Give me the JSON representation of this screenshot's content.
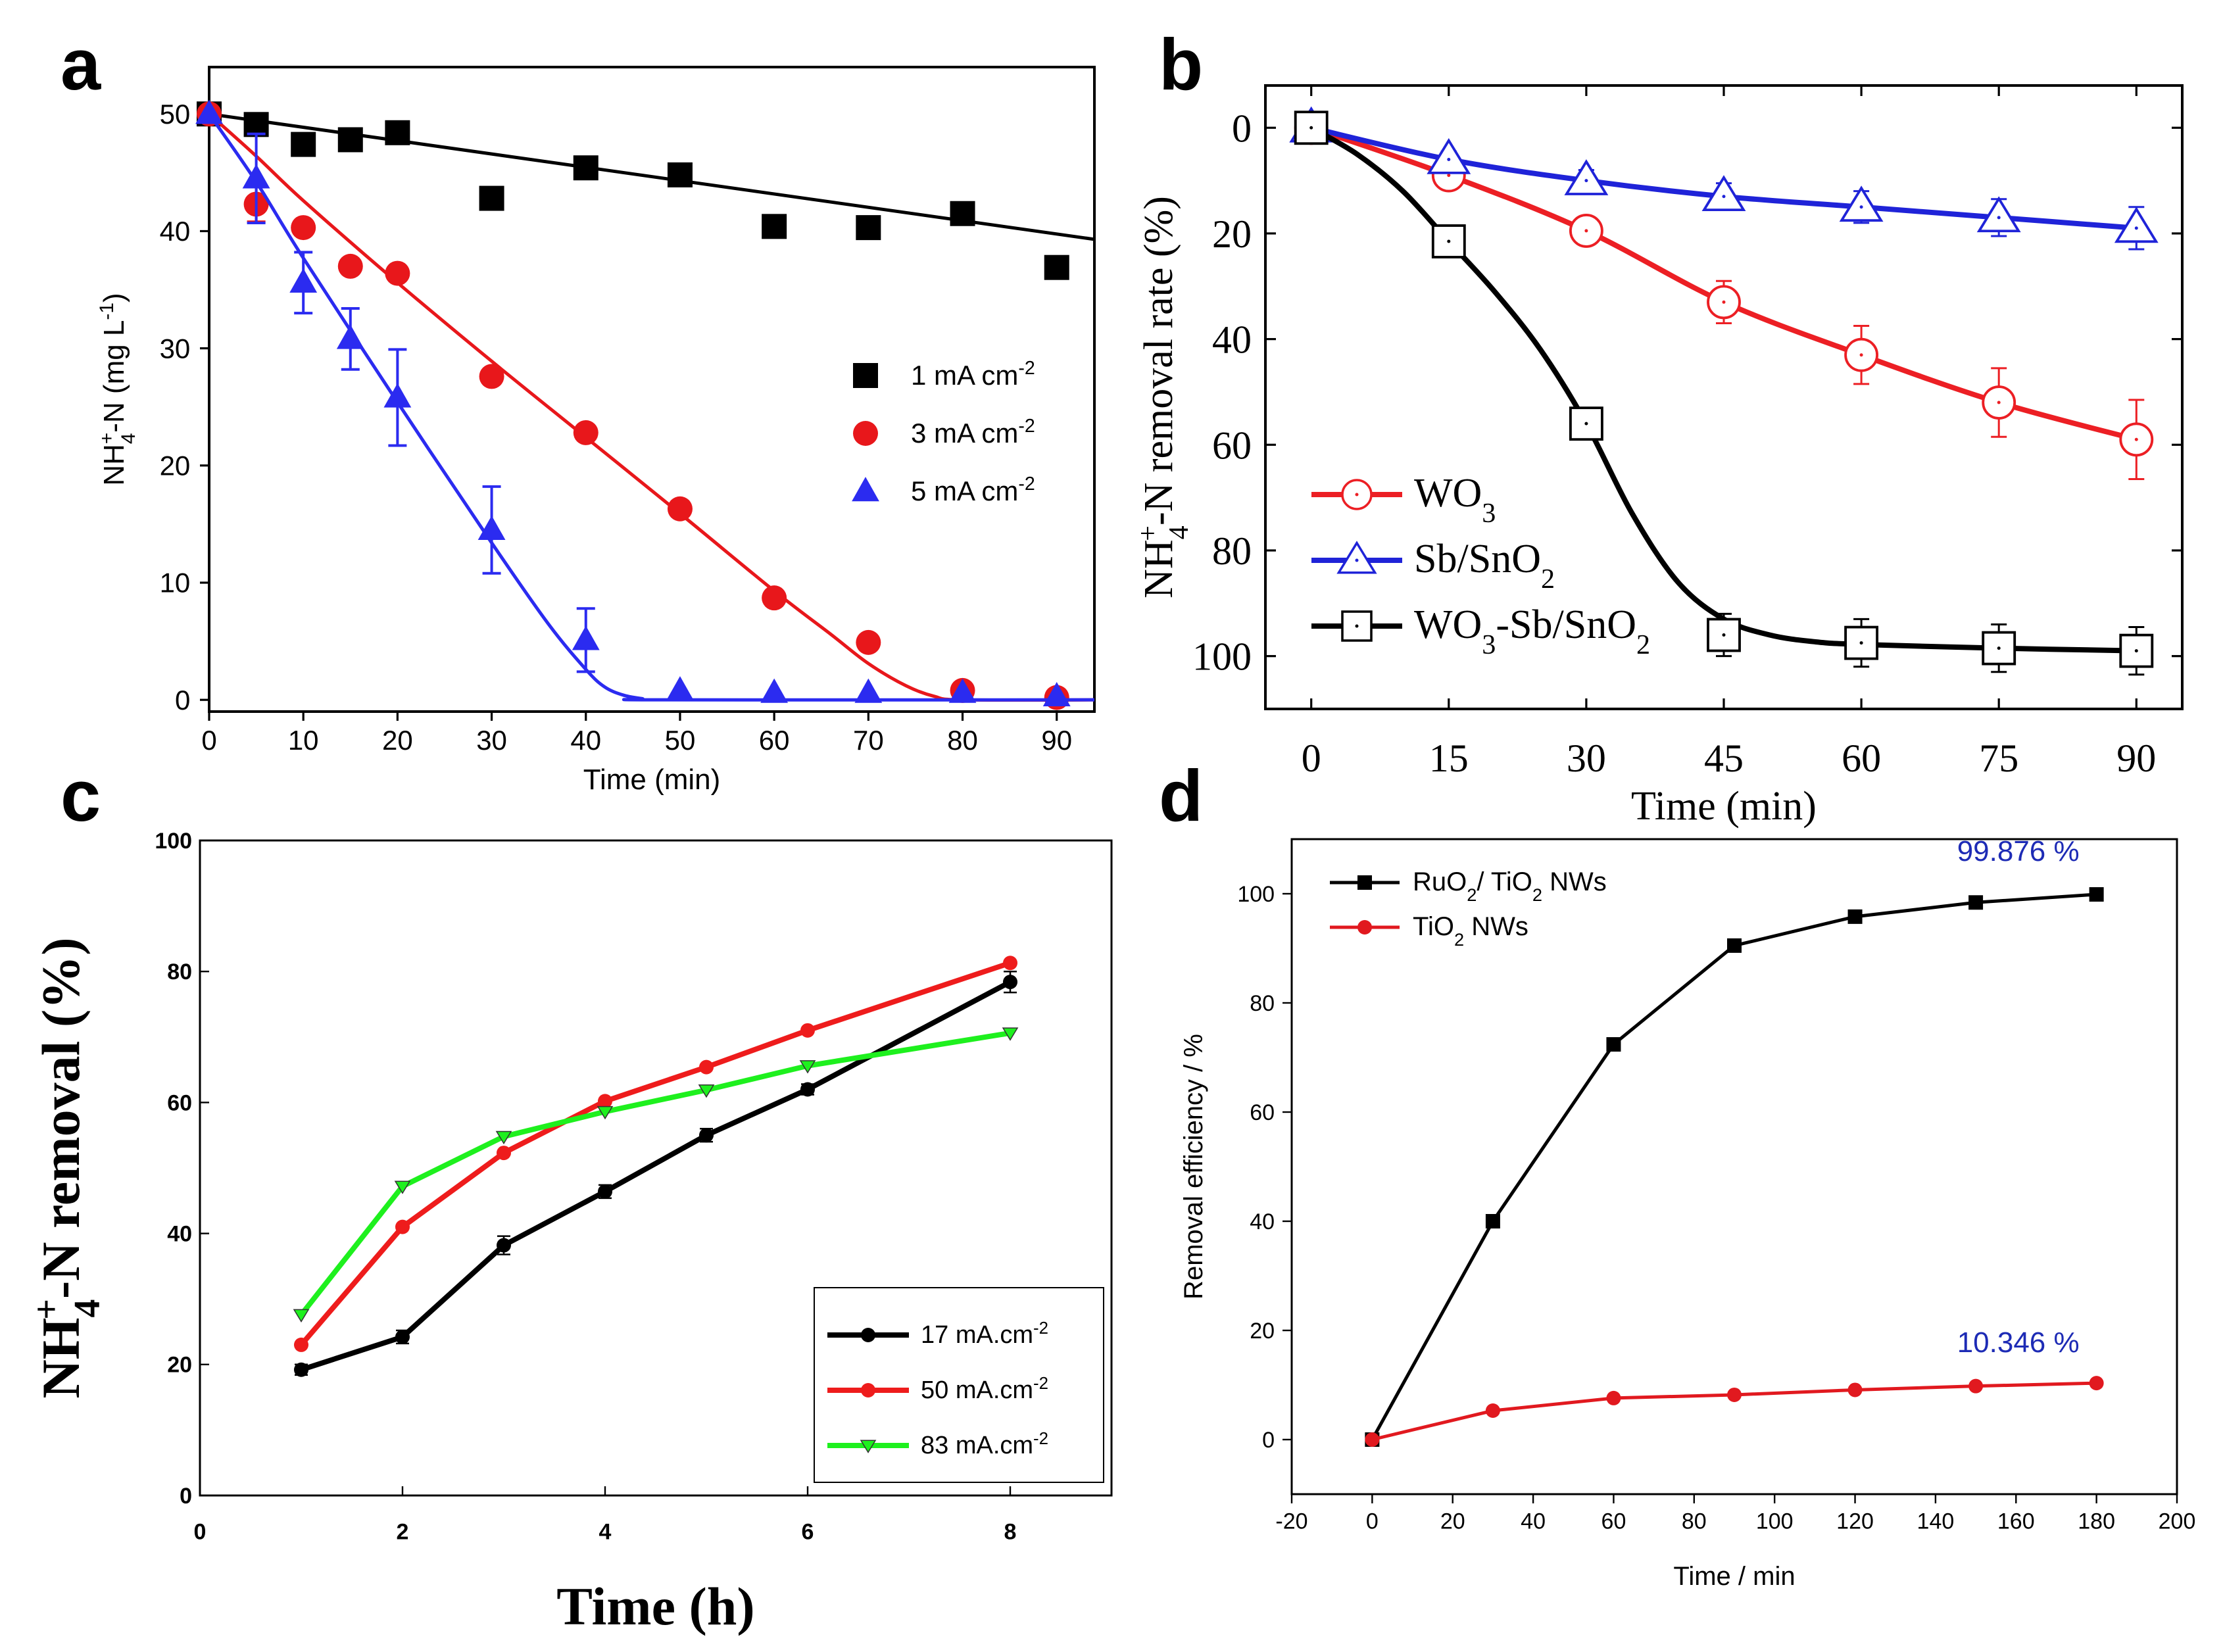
{
  "figure": {
    "panels": [
      "a",
      "b",
      "c",
      "d"
    ]
  },
  "chart_data": [
    {
      "panel": "a",
      "type": "line",
      "xlabel": "Time (min)",
      "ylabel": "NH4+-N (mg L-1)",
      "ylabel_parts": {
        "main": "NH",
        "sub": "4",
        "sup": "+",
        "rest": "-N (mg L",
        "sup2": "-1",
        "end": ")"
      },
      "xlim": [
        0,
        94
      ],
      "ylim": [
        -1,
        54
      ],
      "xticks": [
        0,
        10,
        20,
        30,
        40,
        50,
        60,
        70,
        80,
        90
      ],
      "yticks": [
        0,
        10,
        20,
        30,
        40,
        50
      ],
      "legend_position": "center-right",
      "series": [
        {
          "name": "1 mA cm-2",
          "label_main": "1 mA cm",
          "label_sup": "-2",
          "color": "#000000",
          "marker": "square",
          "x": [
            0,
            5,
            10,
            15,
            20,
            30,
            40,
            50,
            60,
            70,
            80,
            90
          ],
          "y": [
            50,
            49.1,
            47.4,
            47.8,
            48.4,
            42.8,
            45.4,
            44.8,
            40.4,
            40.3,
            41.5,
            36.9
          ],
          "fit_x": [
            0,
            94
          ],
          "fit_y": [
            50,
            39.3
          ]
        },
        {
          "name": "3 mA cm-2",
          "label_main": "3 mA cm",
          "label_sup": "-2",
          "color": "#e8171b",
          "marker": "circle",
          "x": [
            0,
            5,
            10,
            15,
            20,
            30,
            40,
            50,
            60,
            70,
            80,
            90
          ],
          "y": [
            50,
            42.3,
            40.3,
            37,
            36.4,
            27.6,
            22.8,
            16.3,
            8.7,
            4.9,
            0.8,
            0.2
          ],
          "err": [
            0,
            1.5,
            0,
            0,
            0,
            0,
            0,
            0,
            0,
            0,
            0,
            0
          ],
          "fit_x": [
            0,
            5,
            10,
            20,
            30,
            40,
            50,
            60,
            66,
            70,
            74,
            77,
            80,
            94
          ],
          "fit_y": [
            50,
            46.4,
            42.6,
            35.6,
            28.9,
            22.4,
            15.9,
            9.3,
            5.6,
            3.1,
            1.2,
            0.3,
            0,
            0
          ]
        },
        {
          "name": "5 mA cm-2",
          "label_main": "5 mA cm",
          "label_sup": "-2",
          "color": "#2b2bf0",
          "marker": "triangle",
          "x": [
            0,
            5,
            10,
            15,
            20,
            30,
            40,
            50,
            60,
            70,
            80,
            90
          ],
          "y": [
            50,
            44.5,
            35.6,
            30.8,
            25.8,
            14.5,
            5.1,
            0.8,
            0.6,
            0.6,
            0.6,
            0.3
          ],
          "err": [
            0,
            3.8,
            2.6,
            2.6,
            4.1,
            3.7,
            2.7,
            0,
            0,
            0,
            0,
            0
          ],
          "fit_x": [
            0,
            5,
            10,
            20,
            30,
            36,
            40,
            42,
            44,
            46,
            48,
            94
          ],
          "fit_y": [
            50,
            44.2,
            37.7,
            25.4,
            13.4,
            6.5,
            2.6,
            1.1,
            0.4,
            0.1,
            0,
            0
          ]
        }
      ]
    },
    {
      "panel": "b",
      "type": "line",
      "xlabel": "Time (min)",
      "ylabel": "NH4+-N removal rate (%)",
      "ylabel_parts": {
        "main": "NH",
        "sub": "4",
        "sup": "+",
        "rest": "-N removal rate (%)"
      },
      "xlim": [
        -5,
        95
      ],
      "ylim": [
        -8,
        110
      ],
      "y_inverted": true,
      "xticks": [
        0,
        15,
        30,
        45,
        60,
        75,
        90
      ],
      "yticks": [
        0,
        20,
        40,
        60,
        80,
        100
      ],
      "legend_position": "bottom-left",
      "series": [
        {
          "name": "WO3",
          "label_parts": [
            [
              "WO",
              ""
            ],
            [
              "3",
              "sub"
            ]
          ],
          "color": "#ec1f24",
          "marker": "open-circle",
          "x": [
            0,
            15,
            30,
            45,
            60,
            75,
            90
          ],
          "y": [
            0,
            9,
            19.5,
            33,
            43,
            52,
            59
          ],
          "err": [
            0,
            1.5,
            2.5,
            4,
            5.5,
            6.5,
            7.5
          ],
          "curve_x": [
            0,
            15,
            30,
            45,
            60,
            75,
            90
          ],
          "curve_y": [
            0,
            9,
            19.5,
            33,
            43,
            52,
            59
          ]
        },
        {
          "name": "Sb/SnO2",
          "label_parts": [
            [
              "Sb/SnO",
              ""
            ],
            [
              "2",
              "sub"
            ]
          ],
          "color": "#1f23d8",
          "marker": "open-triangle",
          "x": [
            0,
            15,
            30,
            45,
            60,
            75,
            90
          ],
          "y": [
            0,
            6,
            10,
            13,
            15,
            17,
            19
          ],
          "err": [
            0,
            1.5,
            2,
            2.5,
            3,
            3.5,
            4
          ],
          "curve_x": [
            0,
            15,
            30,
            45,
            60,
            75,
            90
          ],
          "curve_y": [
            0,
            6,
            10,
            13,
            15,
            17,
            19
          ]
        },
        {
          "name": "WO3-Sb/SnO2",
          "label_parts": [
            [
              "WO",
              ""
            ],
            [
              "3",
              "sub"
            ],
            [
              "-Sb/SnO",
              ""
            ],
            [
              "2",
              "sub"
            ]
          ],
          "color": "#000000",
          "marker": "open-square",
          "x": [
            0,
            15,
            30,
            45,
            60,
            75,
            90
          ],
          "y": [
            0,
            21.5,
            56,
            96,
            97.5,
            98.5,
            99
          ],
          "err": [
            0,
            1,
            1,
            4,
            4.5,
            4.5,
            4.5
          ],
          "curve_x": [
            0,
            5,
            10,
            15,
            20,
            25,
            30,
            35,
            40,
            45,
            50,
            55,
            60,
            75,
            90
          ],
          "curve_y": [
            0,
            5,
            12,
            21.5,
            31,
            42,
            56,
            73,
            86,
            93,
            96,
            97.3,
            97.8,
            98.5,
            99
          ]
        }
      ]
    },
    {
      "panel": "c",
      "type": "line",
      "xlabel": "Time (h)",
      "ylabel": "NH4+-N removal (%)",
      "ylabel_parts": {
        "main": "NH",
        "sub": "4",
        "sup": "+",
        "rest": "-N removal  (%)"
      },
      "xlim": [
        0,
        9
      ],
      "ylim": [
        0,
        100
      ],
      "xticks": [
        0,
        2,
        4,
        6,
        8
      ],
      "yticks": [
        0,
        20,
        40,
        60,
        80,
        100
      ],
      "legend_position": "bottom-right",
      "series": [
        {
          "name": "17 mA.cm-2",
          "label_main": "17 mA.cm",
          "label_sup": "-2",
          "color": "#000000",
          "marker": "circle",
          "x": [
            1,
            2,
            3,
            4,
            5,
            6,
            8
          ],
          "y": [
            19.2,
            24.2,
            38.2,
            46.4,
            55,
            62,
            78.4
          ],
          "err": [
            0.8,
            1.0,
            1.4,
            1.0,
            1.0,
            0.8,
            1.6
          ]
        },
        {
          "name": "50 mA.cm-2",
          "label_main": "50 mA.cm",
          "label_sup": "-2",
          "color": "#ee1c1c",
          "marker": "circle",
          "x": [
            1,
            2,
            3,
            4,
            5,
            6,
            8
          ],
          "y": [
            23,
            41,
            52.3,
            60.2,
            65.4,
            71,
            81.3
          ],
          "err": [
            0,
            0,
            0,
            0,
            0,
            0,
            0
          ]
        },
        {
          "name": "83 mA.cm-2",
          "label_main": "83 mA.cm",
          "label_sup": "-2",
          "color": "#1ef01e",
          "marker": "triangle-down",
          "x": [
            1,
            2,
            3,
            4,
            5,
            6,
            8
          ],
          "y": [
            27.6,
            47.2,
            54.8,
            58.6,
            61.9,
            65.6,
            70.6
          ],
          "err": [
            0,
            0,
            0,
            0,
            0,
            0,
            0
          ]
        }
      ]
    },
    {
      "panel": "d",
      "type": "line",
      "xlabel": "Time / min",
      "ylabel": "Removal efficiency / %",
      "xlim": [
        -20,
        200
      ],
      "ylim": [
        -10,
        110
      ],
      "xticks": [
        -20,
        0,
        20,
        40,
        60,
        80,
        100,
        120,
        140,
        160,
        180,
        200
      ],
      "yticks": [
        0,
        20,
        40,
        60,
        80,
        100
      ],
      "legend_position": "top-left",
      "annotations": [
        {
          "text": "99.876 %",
          "x": 180,
          "y": 106,
          "color": "#1d2bb5"
        },
        {
          "text": "10.346 %",
          "x": 180,
          "y": 16,
          "color": "#1d2bb5"
        }
      ],
      "series": [
        {
          "name": "RuO2/ TiO2 NWs",
          "label_parts": [
            [
              "RuO",
              ""
            ],
            [
              "2",
              "sub"
            ],
            [
              "/ TiO",
              ""
            ],
            [
              "2",
              "sub"
            ],
            [
              " NWs",
              ""
            ]
          ],
          "color": "#000000",
          "marker": "square",
          "x": [
            0,
            30,
            60,
            90,
            120,
            150,
            180
          ],
          "y": [
            0,
            40,
            72.4,
            90.5,
            95.8,
            98.4,
            99.876
          ]
        },
        {
          "name": "TiO2 NWs",
          "label_parts": [
            [
              "TiO",
              ""
            ],
            [
              "2",
              "sub"
            ],
            [
              " NWs",
              ""
            ]
          ],
          "color": "#e1191f",
          "marker": "circle",
          "x": [
            0,
            30,
            60,
            90,
            120,
            150,
            180
          ],
          "y": [
            0,
            5.3,
            7.6,
            8.2,
            9.1,
            9.8,
            10.346
          ]
        }
      ]
    }
  ]
}
